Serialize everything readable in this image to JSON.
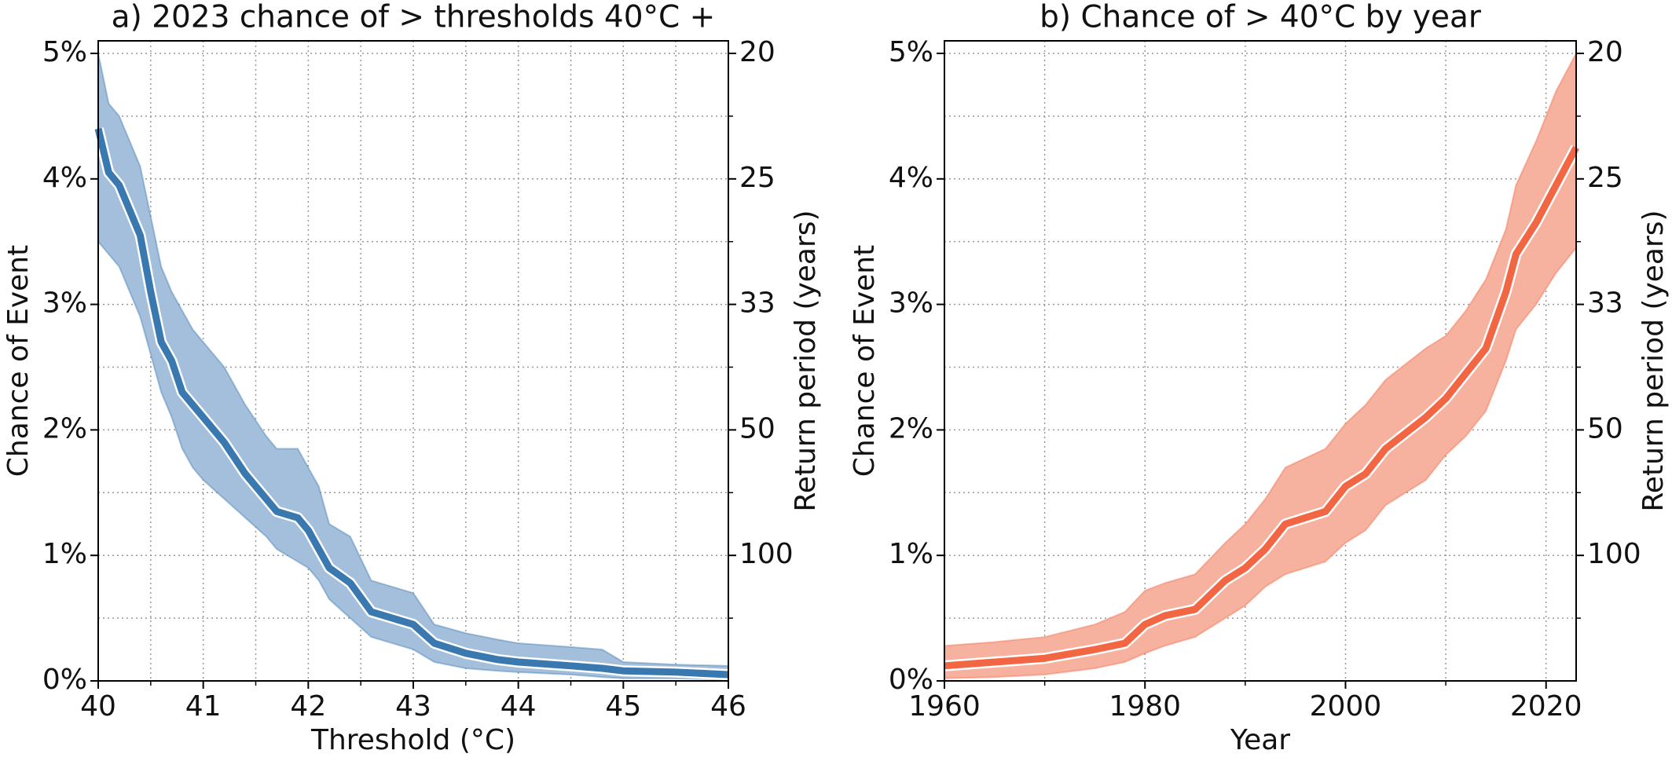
{
  "chart_data": [
    {
      "type": "band-line",
      "title": "a) 2023 chance of > thresholds 40°C +",
      "xlabel": "Threshold (°C)",
      "ylabel": "Chance of Event",
      "y2label": "Return period (years)",
      "x": [
        40,
        40.1,
        40.2,
        40.3,
        40.4,
        40.5,
        40.6,
        40.7,
        40.8,
        40.9,
        41,
        41.2,
        41.4,
        41.6,
        41.7,
        41.9,
        42,
        42.1,
        42.2,
        42.4,
        42.6,
        42.8,
        43,
        43.2,
        43.5,
        43.8,
        44,
        44.5,
        44.8,
        45,
        45.5,
        46
      ],
      "series": [
        {
          "color": "#3a78b0",
          "band_color": "#a3bfdb",
          "values": [
            4.4,
            4.05,
            3.95,
            3.75,
            3.55,
            3.1,
            2.7,
            2.55,
            2.3,
            2.2,
            2.1,
            1.9,
            1.65,
            1.45,
            1.35,
            1.3,
            1.2,
            1.05,
            0.9,
            0.78,
            0.55,
            0.5,
            0.45,
            0.3,
            0.22,
            0.17,
            0.15,
            0.12,
            0.1,
            0.08,
            0.07,
            0.05
          ],
          "lower": [
            3.5,
            3.4,
            3.3,
            3.1,
            2.9,
            2.6,
            2.3,
            2.1,
            1.85,
            1.7,
            1.6,
            1.45,
            1.3,
            1.15,
            1.05,
            0.95,
            0.9,
            0.8,
            0.65,
            0.5,
            0.35,
            0.3,
            0.25,
            0.15,
            0.1,
            0.08,
            0.07,
            0.05,
            0.03,
            0.02,
            0.02,
            0.01
          ],
          "upper": [
            5.0,
            4.6,
            4.5,
            4.3,
            4.1,
            3.7,
            3.3,
            3.1,
            2.95,
            2.8,
            2.7,
            2.5,
            2.2,
            1.95,
            1.85,
            1.85,
            1.7,
            1.55,
            1.25,
            1.15,
            0.8,
            0.75,
            0.7,
            0.45,
            0.38,
            0.33,
            0.3,
            0.27,
            0.25,
            0.15,
            0.13,
            0.12
          ]
        }
      ],
      "xlim": [
        40,
        46
      ],
      "xticks": [
        40,
        41,
        42,
        43,
        44,
        45,
        46
      ],
      "xminor": [
        40.5,
        41.5,
        42.5,
        43.5,
        44.5,
        45.5
      ],
      "ylim": [
        0,
        5.1
      ],
      "yticks": [
        {
          "value": 0,
          "label": "0%"
        },
        {
          "value": 1,
          "label": "1%"
        },
        {
          "value": 2,
          "label": "2%"
        },
        {
          "value": 3,
          "label": "3%"
        },
        {
          "value": 4,
          "label": "4%"
        },
        {
          "value": 5,
          "label": "5%"
        }
      ],
      "yminor": [
        0.5,
        1.5,
        2.5,
        3.5,
        4.5
      ],
      "y2ticks": [
        {
          "value": 5,
          "label": "20"
        },
        {
          "value": 4,
          "label": "25"
        },
        {
          "value": 3,
          "label": "33"
        },
        {
          "value": 2,
          "label": "50"
        },
        {
          "value": 1,
          "label": "100"
        }
      ],
      "grid": true
    },
    {
      "type": "band-line",
      "title": "b) Chance of > 40°C by year",
      "xlabel": "Year",
      "ylabel": "Chance of Event",
      "y2label": "Return period (years)",
      "x": [
        1960,
        1965,
        1970,
        1975,
        1978,
        1980,
        1982,
        1985,
        1988,
        1990,
        1992,
        1994,
        1998,
        2000,
        2002,
        2004,
        2008,
        2010,
        2012,
        2014,
        2016,
        2017,
        2019,
        2021,
        2023
      ],
      "series": [
        {
          "color": "#f26644",
          "band_color": "#f7b19f",
          "values": [
            0.12,
            0.15,
            0.18,
            0.25,
            0.3,
            0.45,
            0.52,
            0.57,
            0.8,
            0.9,
            1.05,
            1.25,
            1.35,
            1.55,
            1.65,
            1.85,
            2.1,
            2.25,
            2.45,
            2.65,
            3.1,
            3.4,
            3.65,
            3.95,
            4.25
          ],
          "lower": [
            0.02,
            0.03,
            0.05,
            0.1,
            0.15,
            0.22,
            0.28,
            0.35,
            0.5,
            0.6,
            0.75,
            0.85,
            0.95,
            1.1,
            1.2,
            1.4,
            1.6,
            1.8,
            1.95,
            2.15,
            2.55,
            2.8,
            3.0,
            3.25,
            3.45
          ],
          "upper": [
            0.28,
            0.31,
            0.35,
            0.45,
            0.55,
            0.72,
            0.78,
            0.85,
            1.1,
            1.25,
            1.45,
            1.7,
            1.85,
            2.05,
            2.2,
            2.4,
            2.65,
            2.75,
            2.95,
            3.2,
            3.6,
            3.95,
            4.3,
            4.7,
            5.0
          ]
        }
      ],
      "xlim": [
        1960,
        2023
      ],
      "xticks": [
        1960,
        1980,
        2000,
        2020
      ],
      "xminor": [
        1970,
        1990,
        2010
      ],
      "ylim": [
        0,
        5.1
      ],
      "yticks": [
        {
          "value": 0,
          "label": "0%"
        },
        {
          "value": 1,
          "label": "1%"
        },
        {
          "value": 2,
          "label": "2%"
        },
        {
          "value": 3,
          "label": "3%"
        },
        {
          "value": 4,
          "label": "4%"
        },
        {
          "value": 5,
          "label": "5%"
        }
      ],
      "yminor": [
        0.5,
        1.5,
        2.5,
        3.5,
        4.5
      ],
      "y2ticks": [
        {
          "value": 5,
          "label": "20"
        },
        {
          "value": 4,
          "label": "25"
        },
        {
          "value": 3,
          "label": "33"
        },
        {
          "value": 2,
          "label": "50"
        },
        {
          "value": 1,
          "label": "100"
        }
      ],
      "grid": true
    }
  ]
}
